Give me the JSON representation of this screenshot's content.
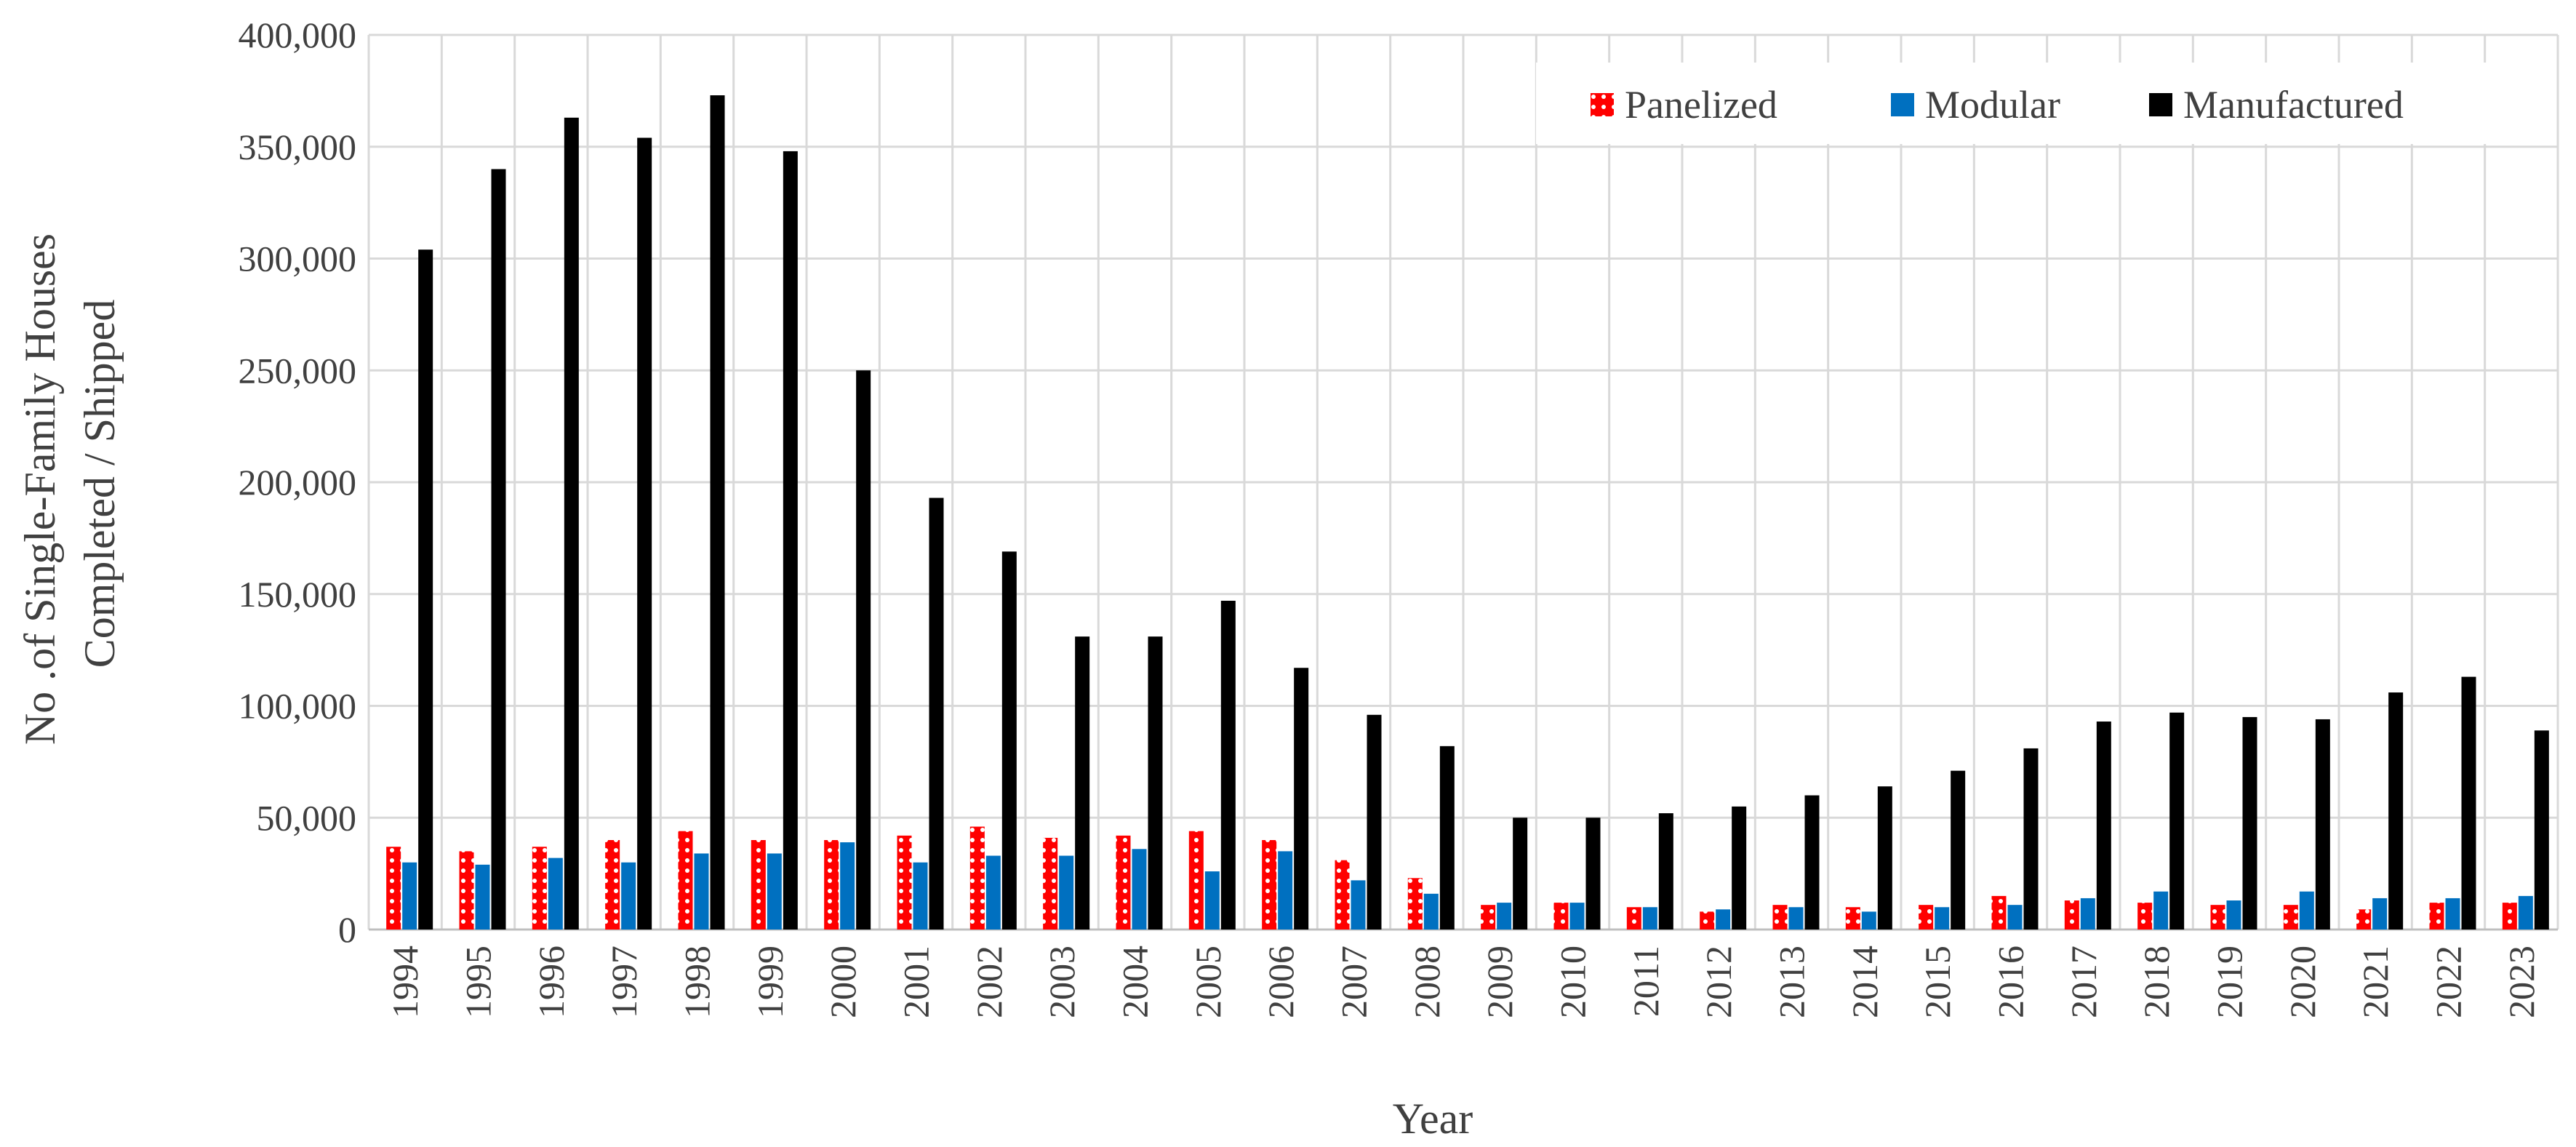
{
  "chart_data": {
    "type": "bar",
    "title": "",
    "xlabel": "Year",
    "ylabel_lines": [
      "No .of Single-Family Houses",
      "Completed / Shipped"
    ],
    "ylim": [
      0,
      400000
    ],
    "yticks": [
      0,
      50000,
      100000,
      150000,
      200000,
      250000,
      300000,
      350000,
      400000
    ],
    "ytick_labels": [
      "0",
      "50,000",
      "100,000",
      "150,000",
      "200,000",
      "250,000",
      "300,000",
      "350,000",
      "400,000"
    ],
    "grid": true,
    "legend_position": "top-right",
    "categories": [
      "1994",
      "1995",
      "1996",
      "1997",
      "1998",
      "1999",
      "2000",
      "2001",
      "2002",
      "2003",
      "2004",
      "2005",
      "2006",
      "2007",
      "2008",
      "2009",
      "2010",
      "2011",
      "2012",
      "2013",
      "2014",
      "2015",
      "2016",
      "2017",
      "2018",
      "2019",
      "2020",
      "2021",
      "2022",
      "2023"
    ],
    "series": [
      {
        "name": "Panelized",
        "color": "#ff0000",
        "pattern": "dotted",
        "values": [
          37000,
          35000,
          37000,
          40000,
          44000,
          40000,
          40000,
          42000,
          46000,
          41000,
          42000,
          44000,
          40000,
          31000,
          23000,
          11000,
          12000,
          10000,
          8000,
          11000,
          10000,
          11000,
          15000,
          13000,
          12000,
          11000,
          11000,
          9000,
          12000,
          12000
        ]
      },
      {
        "name": "Modular",
        "color": "#0070c0",
        "pattern": "solid",
        "values": [
          30000,
          29000,
          32000,
          30000,
          34000,
          34000,
          39000,
          30000,
          33000,
          33000,
          36000,
          26000,
          35000,
          22000,
          16000,
          12000,
          12000,
          10000,
          9000,
          10000,
          8000,
          10000,
          11000,
          14000,
          17000,
          13000,
          17000,
          14000,
          14000,
          15000
        ]
      },
      {
        "name": "Manufactured",
        "color": "#000000",
        "pattern": "solid",
        "values": [
          304000,
          340000,
          363000,
          354000,
          373000,
          348000,
          250000,
          193000,
          169000,
          131000,
          131000,
          147000,
          117000,
          96000,
          82000,
          50000,
          50000,
          52000,
          55000,
          60000,
          64000,
          71000,
          81000,
          93000,
          97000,
          95000,
          94000,
          106000,
          113000,
          89000
        ]
      }
    ]
  }
}
